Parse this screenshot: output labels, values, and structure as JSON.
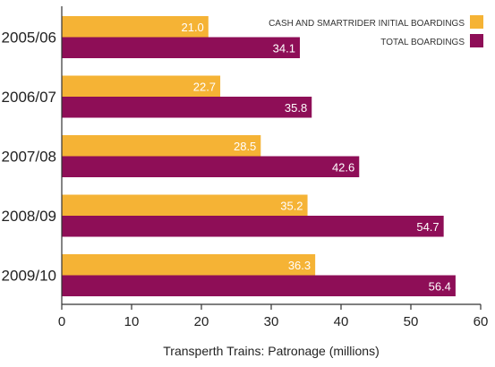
{
  "chart_data": {
    "type": "bar",
    "orientation": "horizontal",
    "categories": [
      "2005/06",
      "2006/07",
      "2007/08",
      "2008/09",
      "2009/10"
    ],
    "series": [
      {
        "name": "CASH AND SMARTRIDER INITIAL BOARDINGS",
        "values": [
          21.0,
          22.7,
          28.5,
          35.2,
          36.3
        ],
        "color": "#F5B335"
      },
      {
        "name": "TOTAL BOARDINGS",
        "values": [
          34.1,
          35.8,
          42.6,
          54.7,
          56.4
        ],
        "color": "#8E0E57"
      }
    ],
    "value_labels": [
      [
        "21.0",
        "22.7",
        "28.5",
        "35.2",
        "36.3"
      ],
      [
        "34.1",
        "35.8",
        "42.6",
        "54.7",
        "56.4"
      ]
    ],
    "xlabel": "Transperth Trains: Patronage (millions)",
    "xlim": [
      0,
      60
    ],
    "xticks": [
      "0",
      "10",
      "20",
      "30",
      "40",
      "50",
      "60"
    ],
    "grid": false,
    "legend_position": "top-right"
  }
}
